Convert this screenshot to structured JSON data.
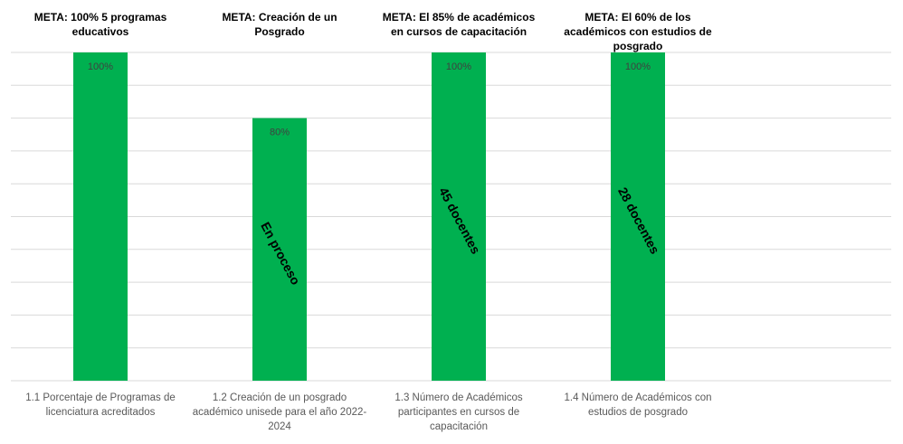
{
  "chart_data": {
    "type": "bar",
    "categories": [
      "1.1 Porcentaje de Programas de licenciatura acreditados",
      "1.2 Creación de un posgrado académico unisede para el año 2022-2024",
      "1.3 Número de Académicos participantes en cursos de capacitación",
      "1.4 Número de Académicos con estudios de posgrado"
    ],
    "values": [
      100,
      80,
      100,
      100
    ],
    "value_labels": [
      "100%",
      "80%",
      "100%",
      "100%"
    ],
    "goals": [
      "META: 100% 5 programas educativos",
      "META: Creación de un Posgrado",
      "META: El 85% de académicos en cursos de capacitación",
      "META: El 60% de los académicos con estudios de posgrado"
    ],
    "bar_notes": [
      null,
      "En proceso",
      "45 docentes",
      "28 docentes"
    ],
    "color": "#00b050",
    "ylim": [
      0,
      100
    ],
    "yticks": [
      0,
      10,
      20,
      30,
      40,
      50,
      60,
      70,
      80,
      90,
      100
    ],
    "grid": true
  }
}
